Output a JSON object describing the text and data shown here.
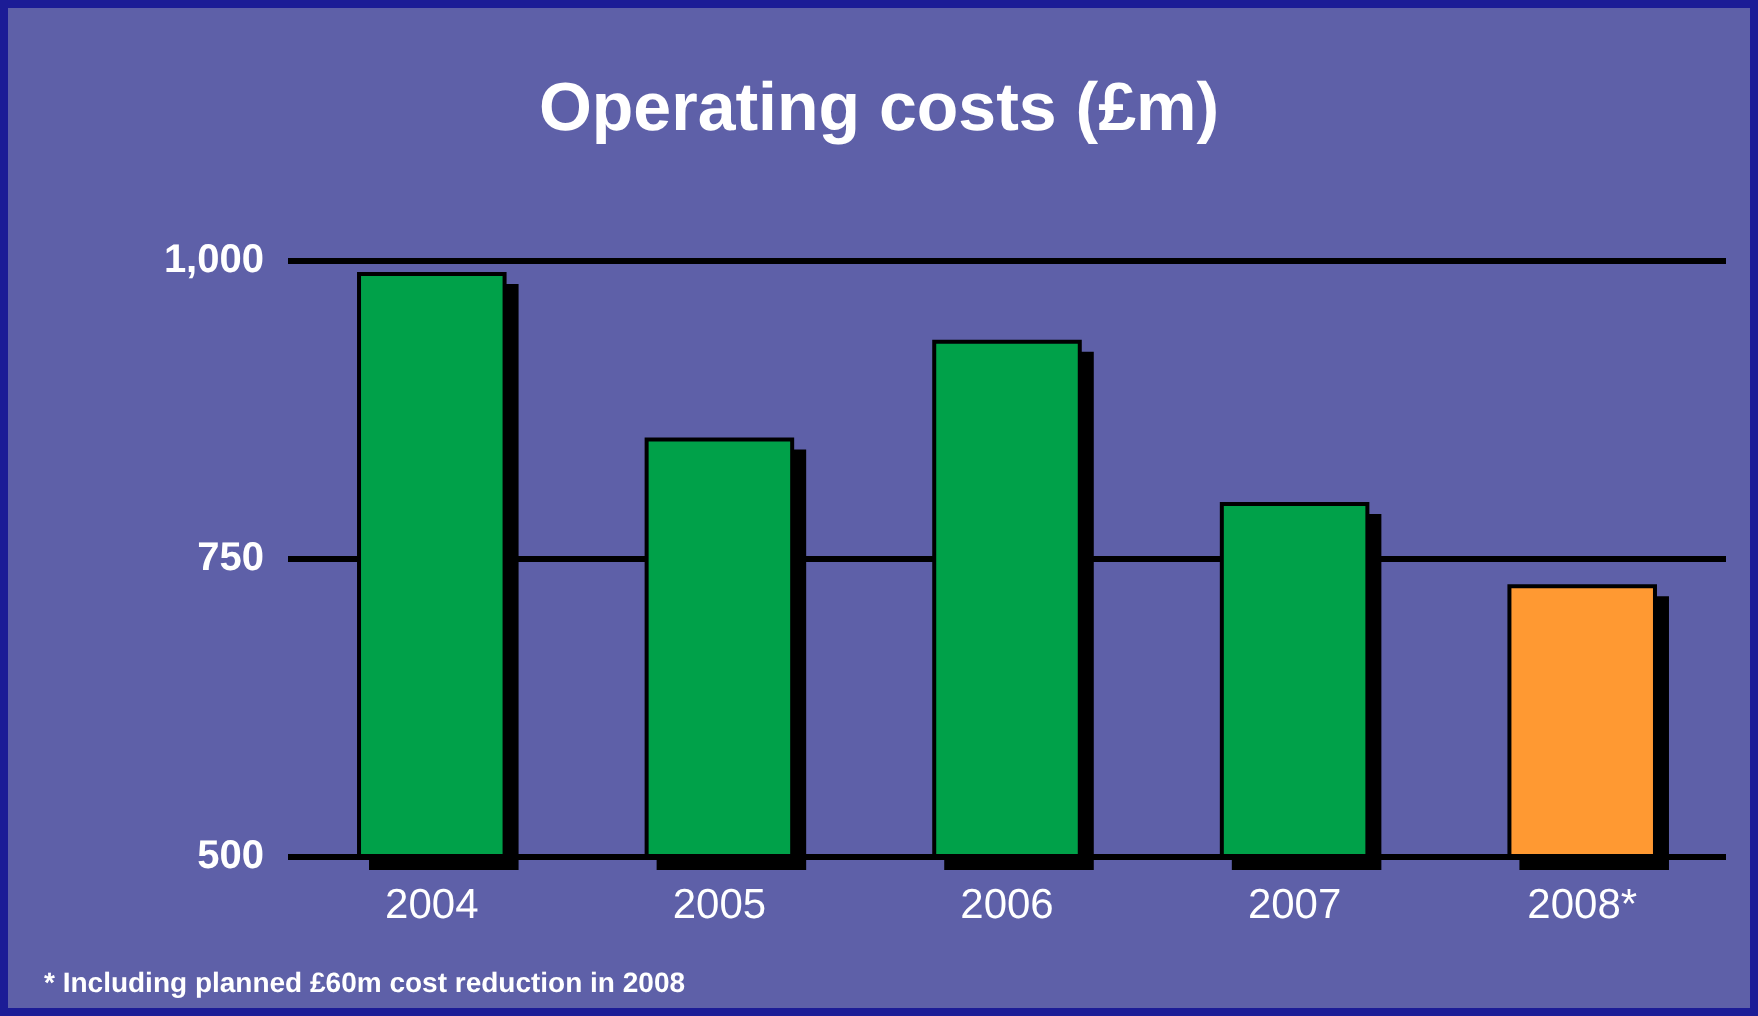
{
  "chart_data": {
    "type": "bar",
    "title": "Operating costs (£m)",
    "categories": [
      "2004",
      "2005",
      "2006",
      "2007",
      "2008*"
    ],
    "values": [
      990,
      851,
      933,
      797,
      728
    ],
    "colors": [
      "#03a14a",
      "#03a14a",
      "#03a14a",
      "#03a14a",
      "#ff9933"
    ],
    "ylim": [
      500,
      1000
    ],
    "yticks": [
      500,
      750,
      {
        "value": 1000,
        "label": "1,000"
      }
    ],
    "grid": "y",
    "annotations": [
      "* Including planned £60m cost reduction in 2008"
    ]
  }
}
